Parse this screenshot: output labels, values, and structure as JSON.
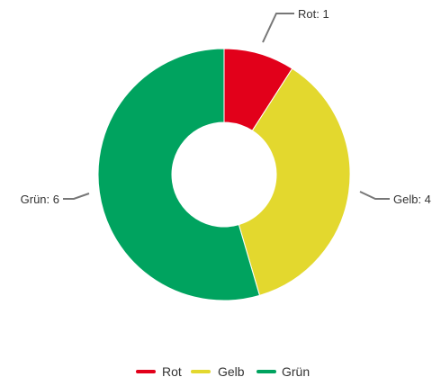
{
  "chart_data": {
    "type": "pie",
    "variant": "donut",
    "title": "",
    "categories": [
      "Rot",
      "Gelb",
      "Grün"
    ],
    "values": [
      1,
      4,
      6
    ],
    "data_labels": [
      "Rot: 1",
      "Gelb: 4",
      "Grün: 6"
    ],
    "colors": [
      "#E2001A",
      "#E3D82E",
      "#00A35F"
    ],
    "legend": {
      "position": "bottom",
      "entries": [
        "Rot",
        "Gelb",
        "Grün"
      ]
    }
  }
}
